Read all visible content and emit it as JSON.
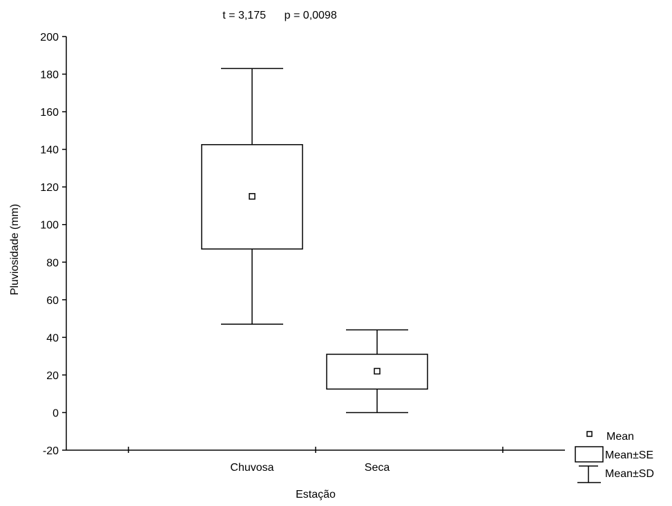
{
  "chart_data": {
    "type": "box",
    "title": "t = 3,175      p = 0,0098",
    "xlabel": "Estação",
    "ylabel": "Pluviosidade (mm)",
    "ylim": [
      -20,
      200
    ],
    "yticks": [
      -20,
      0,
      20,
      40,
      60,
      80,
      100,
      120,
      140,
      160,
      180,
      200
    ],
    "grid": false,
    "legend_position": "bottom-right",
    "legend": [
      "Mean",
      "Mean±SE",
      "Mean±SD"
    ],
    "categories": [
      "Chuvosa",
      "Seca"
    ],
    "series": [
      {
        "category": "Chuvosa",
        "mean": 115,
        "se_low": 87,
        "se_high": 142.5,
        "sd_low": 47,
        "sd_high": 183
      },
      {
        "category": "Seca",
        "mean": 22,
        "se_low": 12.5,
        "se_high": 31,
        "sd_low": 0,
        "sd_high": 44
      }
    ]
  }
}
